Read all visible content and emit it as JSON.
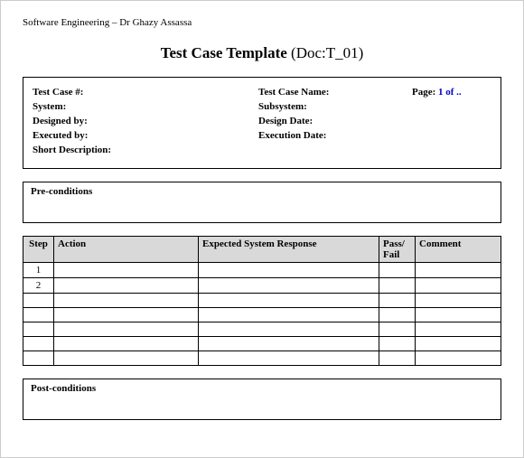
{
  "header": "Software Engineering – Dr Ghazy Assassa",
  "title_bold": "Test Case Template",
  "title_paren": "(Doc:T_01)",
  "meta": {
    "test_case_num_label": "Test Case #:",
    "test_case_name_label": "Test Case Name:",
    "page_label": "Page:",
    "page_value": "1 of ..",
    "system_label": "System:",
    "subsystem_label": "Subsystem:",
    "designed_by_label": "Designed by:",
    "design_date_label": "Design Date:",
    "executed_by_label": "Executed by:",
    "execution_date_label": "Execution Date:",
    "short_desc_label": "Short Description:"
  },
  "preconditions_label": "Pre-conditions",
  "postconditions_label": "Post-conditions",
  "steps_table": {
    "headers": {
      "step": "Step",
      "action": "Action",
      "response": "Expected System Response",
      "passfail": "Pass/ Fail",
      "comment": "Comment"
    },
    "rows": [
      {
        "step": "1",
        "action": "",
        "response": "",
        "passfail": "",
        "comment": ""
      },
      {
        "step": "2",
        "action": "",
        "response": "",
        "passfail": "",
        "comment": ""
      },
      {
        "step": "",
        "action": "",
        "response": "",
        "passfail": "",
        "comment": ""
      },
      {
        "step": "",
        "action": "",
        "response": "",
        "passfail": "",
        "comment": ""
      },
      {
        "step": "",
        "action": "",
        "response": "",
        "passfail": "",
        "comment": ""
      },
      {
        "step": "",
        "action": "",
        "response": "",
        "passfail": "",
        "comment": ""
      },
      {
        "step": "",
        "action": "",
        "response": "",
        "passfail": "",
        "comment": ""
      }
    ]
  },
  "colors": {
    "header_bg": "#d9d9d9",
    "border": "#000000",
    "link": "#0000cc"
  }
}
